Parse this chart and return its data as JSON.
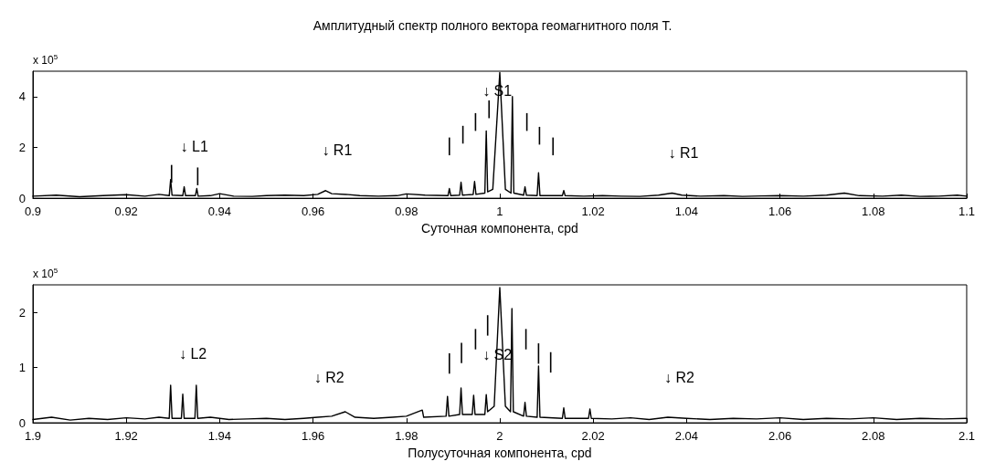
{
  "chart_data": [
    {
      "type": "line",
      "title": "Амплитудный спектр полного вектора геомагнитного поля Т.",
      "xlabel": "Суточная компонента, cpd",
      "grid": false,
      "marker": "none",
      "line_style": "solid",
      "xlim": [
        0.9,
        1.1
      ],
      "xticks": [
        0.9,
        0.92,
        0.94,
        0.96,
        0.98,
        1,
        1.02,
        1.04,
        1.06,
        1.08,
        1.1
      ],
      "ylim": [
        0,
        5
      ],
      "yticks": [
        0,
        2,
        4
      ],
      "x": [
        0.9,
        0.905,
        0.91,
        0.915,
        0.92,
        0.924,
        0.927,
        0.9292,
        0.9295,
        0.9298,
        0.9321,
        0.9324,
        0.9327,
        0.9348,
        0.9351,
        0.9354,
        0.938,
        0.94,
        0.943,
        0.947,
        0.95,
        0.954,
        0.958,
        0.961,
        0.9627,
        0.964,
        0.967,
        0.97,
        0.974,
        0.978,
        0.98,
        0.984,
        0.9889,
        0.9892,
        0.9895,
        0.9914,
        0.9917,
        0.992,
        0.9943,
        0.9946,
        0.9949,
        0.9968,
        0.9971,
        0.9974,
        0.9985,
        1.0,
        1.0012,
        1.0024,
        1.0027,
        1.003,
        1.0051,
        1.0054,
        1.0057,
        1.008,
        1.0083,
        1.0086,
        1.0134,
        1.0137,
        1.014,
        1.018,
        1.022,
        1.026,
        1.03,
        1.034,
        1.0369,
        1.039,
        1.043,
        1.048,
        1.052,
        1.056,
        1.06,
        1.065,
        1.07,
        1.0738,
        1.077,
        1.082,
        1.086,
        1.09,
        1.094,
        1.098,
        1.1
      ],
      "series": [
        {
          "color": "#000000",
          "values": [
            0.08,
            0.12,
            0.06,
            0.1,
            0.14,
            0.08,
            0.15,
            0.1,
            0.73,
            0.12,
            0.1,
            0.45,
            0.1,
            0.1,
            0.38,
            0.08,
            0.1,
            0.18,
            0.08,
            0.07,
            0.1,
            0.12,
            0.1,
            0.15,
            0.3,
            0.18,
            0.15,
            0.1,
            0.08,
            0.1,
            0.17,
            0.12,
            0.1,
            0.38,
            0.1,
            0.12,
            0.63,
            0.12,
            0.15,
            0.66,
            0.15,
            0.2,
            2.65,
            0.25,
            0.35,
            4.95,
            0.35,
            0.2,
            4.0,
            0.2,
            0.12,
            0.45,
            0.12,
            0.1,
            1.0,
            0.1,
            0.1,
            0.3,
            0.1,
            0.08,
            0.1,
            0.08,
            0.07,
            0.12,
            0.2,
            0.12,
            0.08,
            0.1,
            0.07,
            0.09,
            0.1,
            0.08,
            0.12,
            0.2,
            0.1,
            0.08,
            0.12,
            0.07,
            0.08,
            0.12,
            0.08
          ]
        },
        {
          "type": "bar",
          "color": "#000000",
          "x": [
            0.9297,
            0.9353,
            0.9892,
            0.9921,
            0.9948,
            0.9977,
            1.0058,
            1.0085,
            1.0114
          ],
          "base": [
            0.61,
            0.51,
            1.69,
            2.15,
            2.65,
            3.15,
            2.65,
            2.11,
            1.69
          ],
          "values": [
            0.7,
            0.7,
            0.7,
            0.7,
            0.7,
            0.7,
            0.7,
            0.7,
            0.7
          ]
        }
      ],
      "annotations": [
        "x 10$^{5}$",
        {
          "text": "↓ L1",
          "x": 0.9324,
          "y": 0.45
        },
        {
          "text": "↓ R1",
          "x": 0.9627,
          "y": 0.3
        },
        {
          "text": "↓ S1",
          "x": 0.9971,
          "y": 2.65
        },
        {
          "text": "↓ R1",
          "x": 1.0369,
          "y": 0.2
        }
      ]
    },
    {
      "type": "line",
      "xlabel": "Полусуточная компонента, cpd",
      "grid": false,
      "marker": "none",
      "line_style": "solid",
      "xlim": [
        1.9,
        2.1
      ],
      "xticks": [
        1.9,
        1.92,
        1.94,
        1.96,
        1.98,
        2,
        2.02,
        2.04,
        2.06,
        2.08,
        2.1
      ],
      "ylim": [
        0,
        2.5
      ],
      "yticks": [
        0,
        1,
        2
      ],
      "x": [
        1.9,
        1.904,
        1.908,
        1.912,
        1.916,
        1.92,
        1.924,
        1.927,
        1.9292,
        1.9295,
        1.9298,
        1.9318,
        1.9321,
        1.9324,
        1.9347,
        1.935,
        1.9353,
        1.938,
        1.942,
        1.946,
        1.95,
        1.954,
        1.958,
        1.961,
        1.964,
        1.9669,
        1.969,
        1.973,
        1.977,
        1.98,
        1.9834,
        1.9837,
        1.9885,
        1.9888,
        1.9891,
        1.9914,
        1.9917,
        1.992,
        1.9941,
        1.9944,
        1.9947,
        1.9968,
        1.9971,
        1.9974,
        1.9988,
        2.0,
        2.0012,
        2.0023,
        2.0026,
        2.0029,
        2.0051,
        2.0054,
        2.0057,
        2.008,
        2.0083,
        2.0086,
        2.0134,
        2.0137,
        2.014,
        2.019,
        2.0193,
        2.0196,
        2.024,
        2.028,
        2.032,
        2.036,
        2.04,
        2.045,
        2.05,
        2.055,
        2.06,
        2.065,
        2.07,
        2.075,
        2.08,
        2.085,
        2.09,
        2.095,
        2.1
      ],
      "series": [
        {
          "color": "#000000",
          "values": [
            0.06,
            0.1,
            0.05,
            0.08,
            0.06,
            0.09,
            0.07,
            0.1,
            0.08,
            0.68,
            0.08,
            0.08,
            0.52,
            0.08,
            0.08,
            0.68,
            0.08,
            0.1,
            0.06,
            0.07,
            0.08,
            0.06,
            0.08,
            0.1,
            0.12,
            0.2,
            0.1,
            0.08,
            0.1,
            0.12,
            0.23,
            0.1,
            0.12,
            0.48,
            0.12,
            0.15,
            0.63,
            0.15,
            0.15,
            0.5,
            0.15,
            0.15,
            0.51,
            0.2,
            0.3,
            2.45,
            0.3,
            0.2,
            2.07,
            0.2,
            0.12,
            0.37,
            0.12,
            0.1,
            1.03,
            0.1,
            0.08,
            0.27,
            0.08,
            0.08,
            0.25,
            0.08,
            0.07,
            0.09,
            0.06,
            0.1,
            0.08,
            0.06,
            0.08,
            0.07,
            0.09,
            0.06,
            0.08,
            0.07,
            0.09,
            0.06,
            0.08,
            0.07,
            0.08
          ]
        },
        {
          "type": "bar",
          "color": "#000000",
          "x": [
            1.9892,
            1.9918,
            1.9948,
            1.9974,
            2.0056,
            2.0083,
            2.0109
          ],
          "base": [
            0.89,
            1.08,
            1.33,
            1.58,
            1.33,
            1.07,
            0.91
          ],
          "values": [
            0.37,
            0.37,
            0.37,
            0.37,
            0.37,
            0.37,
            0.37
          ]
        }
      ],
      "annotations": [
        "x 10$^{5}$",
        {
          "text": "↓ L2",
          "x": 1.9321,
          "y": 0.52
        },
        {
          "text": "↓ R2",
          "x": 1.961,
          "y": 0.1
        },
        {
          "text": "↓ S2",
          "x": 1.9971,
          "y": 0.51
        },
        {
          "text": "↓ R2",
          "x": 2.036,
          "y": 0.1
        }
      ]
    }
  ]
}
